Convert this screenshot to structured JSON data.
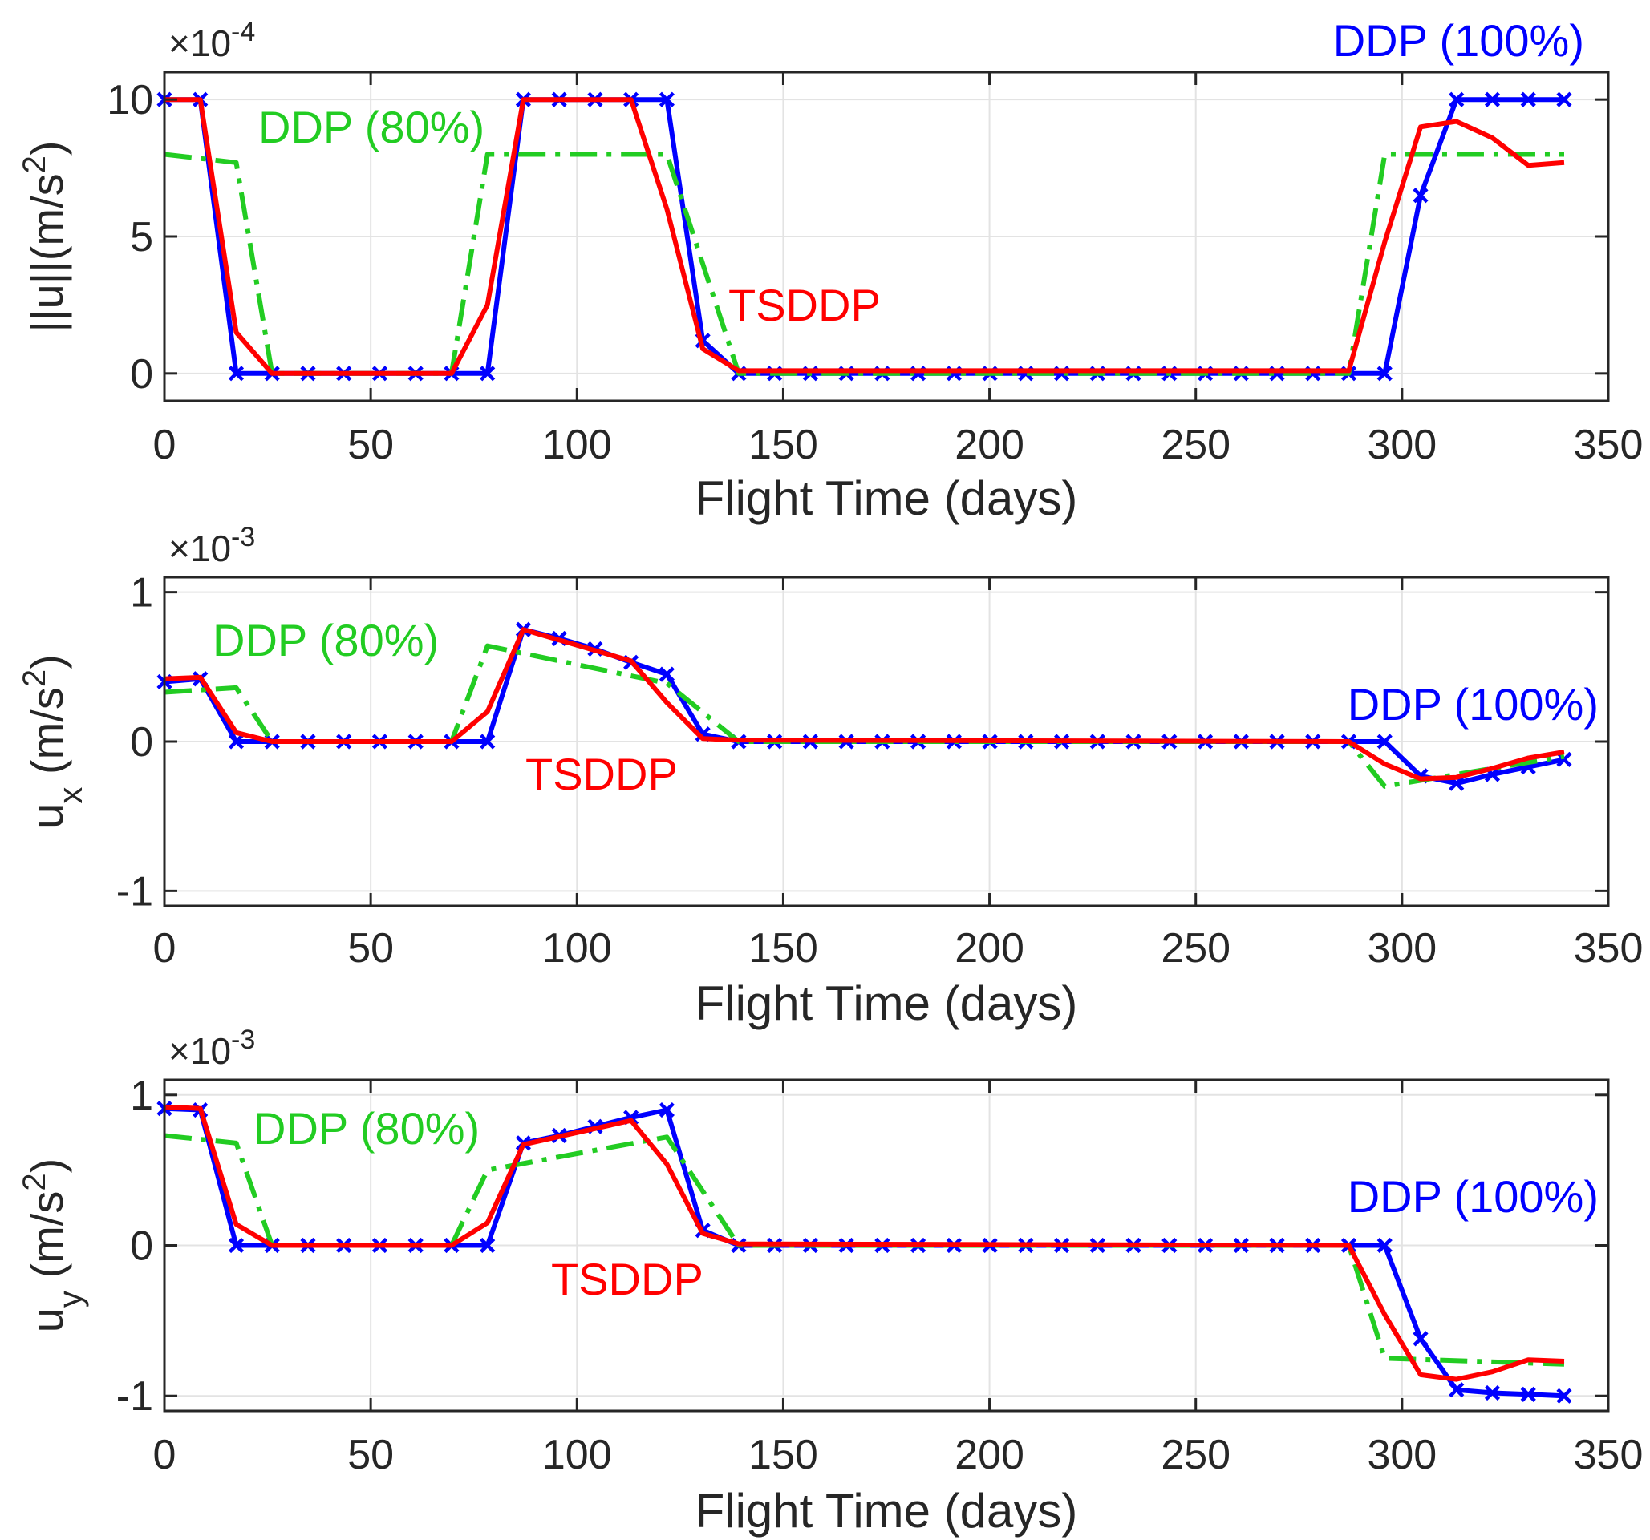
{
  "chart_data": [
    {
      "type": "line",
      "ylabel_parts": [
        "||u||(m/s",
        "2",
        ")"
      ],
      "multiplier_parts": [
        "×10",
        "-4"
      ],
      "xlabel": "Flight Time (days)",
      "xlim": [
        0,
        350
      ],
      "ylim": [
        -1,
        11
      ],
      "xticks": [
        0,
        50,
        100,
        150,
        200,
        250,
        300,
        350
      ],
      "yticks": [
        0,
        5,
        10
      ],
      "ytick_labels": [
        "0",
        "5",
        "10"
      ],
      "grid": true,
      "series": [
        {
          "name": "DDP (100%)",
          "color": "#0000ff",
          "style": "solid-x",
          "x": [
            0,
            8.7,
            17.4,
            26.1,
            34.8,
            43.5,
            52.2,
            60.9,
            69.6,
            78.3,
            87,
            95.7,
            104.4,
            113.1,
            121.8,
            130.5,
            139.2,
            147.9,
            156.6,
            165.3,
            174,
            182.7,
            191.4,
            200.1,
            208.8,
            217.5,
            226.2,
            234.9,
            243.6,
            252.3,
            261,
            269.7,
            278.4,
            287.1,
            295.8,
            304.5,
            313.2,
            321.9,
            330.6,
            339.3
          ],
          "y": [
            10,
            10,
            0,
            0,
            0,
            0,
            0,
            0,
            0,
            0,
            10,
            10,
            10,
            10,
            10,
            1.2,
            0,
            0,
            0,
            0,
            0,
            0,
            0,
            0,
            0,
            0,
            0,
            0,
            0,
            0,
            0,
            0,
            0,
            0,
            0,
            6.5,
            10,
            10,
            10,
            10
          ]
        },
        {
          "name": "DDP (80%)",
          "color": "#22cc22",
          "style": "dashdot",
          "x": [
            0,
            17.4,
            26.1,
            69.6,
            78.3,
            121.8,
            139.2,
            287.1,
            295.8,
            339.3
          ],
          "y": [
            8,
            7.7,
            0,
            0,
            8,
            8,
            0,
            0,
            8,
            8
          ]
        },
        {
          "name": "TSDDP",
          "color": "#ff0000",
          "style": "solid",
          "x": [
            0,
            8.7,
            17.4,
            26.1,
            69.6,
            78.3,
            87,
            113.1,
            121.8,
            130.5,
            139.2,
            287.1,
            295.8,
            304.5,
            313.2,
            321.9,
            330.6,
            339.3
          ],
          "y": [
            10,
            10,
            1.5,
            0,
            0,
            2.5,
            10,
            10,
            6,
            0.9,
            0.1,
            0.1,
            4.8,
            9,
            9.2,
            8.6,
            7.6,
            7.7
          ]
        }
      ],
      "annotations": [
        {
          "text": "DDP (100%)",
          "color": "#0000ff"
        },
        {
          "text": "DDP (80%)",
          "color": "#22cc22"
        },
        {
          "text": "TSDDP",
          "color": "#ff0000"
        }
      ]
    },
    {
      "type": "line",
      "ylabel_parts": [
        "u",
        "x",
        " (m/s",
        "2",
        ")"
      ],
      "multiplier_parts": [
        "×10",
        "-3"
      ],
      "xlabel": "Flight Time (days)",
      "xlim": [
        0,
        350
      ],
      "ylim": [
        -1.1,
        1.1
      ],
      "xticks": [
        0,
        50,
        100,
        150,
        200,
        250,
        300,
        350
      ],
      "yticks": [
        -1,
        0,
        1
      ],
      "ytick_labels": [
        "-1",
        "0",
        "1"
      ],
      "grid": true,
      "series": [
        {
          "name": "DDP (100%)",
          "color": "#0000ff",
          "style": "solid-x",
          "x": [
            0,
            8.7,
            17.4,
            26.1,
            34.8,
            43.5,
            52.2,
            60.9,
            69.6,
            78.3,
            87,
            95.7,
            104.4,
            113.1,
            121.8,
            130.5,
            139.2,
            147.9,
            156.6,
            165.3,
            174,
            182.7,
            191.4,
            200.1,
            208.8,
            217.5,
            226.2,
            234.9,
            243.6,
            252.3,
            261,
            269.7,
            278.4,
            287.1,
            295.8,
            304.5,
            313.2,
            321.9,
            330.6,
            339.3
          ],
          "y": [
            0.4,
            0.42,
            0,
            0,
            0,
            0,
            0,
            0,
            0,
            0,
            0.75,
            0.69,
            0.62,
            0.53,
            0.45,
            0.05,
            0,
            0,
            0,
            0,
            0,
            0,
            0,
            0,
            0,
            0,
            0,
            0,
            0,
            0,
            0,
            0,
            0,
            0,
            0,
            -0.23,
            -0.28,
            -0.22,
            -0.17,
            -0.12
          ]
        },
        {
          "name": "DDP (80%)",
          "color": "#22cc22",
          "style": "dashdot",
          "x": [
            0,
            17.4,
            26.1,
            69.6,
            78.3,
            121.8,
            139.2,
            287.1,
            295.8,
            339.3
          ],
          "y": [
            0.33,
            0.36,
            0,
            0,
            0.64,
            0.39,
            0,
            0,
            -0.3,
            -0.1
          ]
        },
        {
          "name": "TSDDP",
          "color": "#ff0000",
          "style": "solid",
          "x": [
            0,
            8.7,
            17.4,
            26.1,
            69.6,
            78.3,
            87,
            113.1,
            121.8,
            130.5,
            139.2,
            287.1,
            295.8,
            304.5,
            313.2,
            321.9,
            330.6,
            339.3
          ],
          "y": [
            0.42,
            0.43,
            0.06,
            0,
            0,
            0.2,
            0.75,
            0.54,
            0.26,
            0.02,
            0.01,
            0,
            -0.15,
            -0.25,
            -0.24,
            -0.18,
            -0.11,
            -0.07
          ]
        }
      ],
      "annotations": [
        {
          "text": "DDP (80%)",
          "color": "#22cc22"
        },
        {
          "text": "DDP (100%)",
          "color": "#0000ff"
        },
        {
          "text": "TSDDP",
          "color": "#ff0000"
        }
      ]
    },
    {
      "type": "line",
      "ylabel_parts": [
        "u",
        "y",
        " (m/s",
        "2",
        ")"
      ],
      "multiplier_parts": [
        "×10",
        "-3"
      ],
      "xlabel": "Flight Time (days)",
      "xlim": [
        0,
        350
      ],
      "ylim": [
        -1.1,
        1.1
      ],
      "xticks": [
        0,
        50,
        100,
        150,
        200,
        250,
        300,
        350
      ],
      "yticks": [
        -1,
        0,
        1
      ],
      "ytick_labels": [
        "-1",
        "0",
        "1"
      ],
      "grid": true,
      "series": [
        {
          "name": "DDP (100%)",
          "color": "#0000ff",
          "style": "solid-x",
          "x": [
            0,
            8.7,
            17.4,
            26.1,
            34.8,
            43.5,
            52.2,
            60.9,
            69.6,
            78.3,
            87,
            95.7,
            104.4,
            113.1,
            121.8,
            130.5,
            139.2,
            147.9,
            156.6,
            165.3,
            174,
            182.7,
            191.4,
            200.1,
            208.8,
            217.5,
            226.2,
            234.9,
            243.6,
            252.3,
            261,
            269.7,
            278.4,
            287.1,
            295.8,
            304.5,
            313.2,
            321.9,
            330.6,
            339.3
          ],
          "y": [
            0.91,
            0.9,
            0,
            0,
            0,
            0,
            0,
            0,
            0,
            0,
            0.68,
            0.73,
            0.79,
            0.85,
            0.9,
            0.1,
            0,
            0,
            0,
            0,
            0,
            0,
            0,
            0,
            0,
            0,
            0,
            0,
            0,
            0,
            0,
            0,
            0,
            0,
            0,
            -0.62,
            -0.96,
            -0.98,
            -0.99,
            -1
          ]
        },
        {
          "name": "DDP (80%)",
          "color": "#22cc22",
          "style": "dashdot",
          "x": [
            0,
            17.4,
            26.1,
            69.6,
            78.3,
            121.8,
            139.2,
            287.1,
            295.8,
            339.3
          ],
          "y": [
            0.73,
            0.68,
            0,
            0,
            0.5,
            0.72,
            0,
            0,
            -0.75,
            -0.79
          ]
        },
        {
          "name": "TSDDP",
          "color": "#ff0000",
          "style": "solid",
          "x": [
            0,
            8.7,
            17.4,
            26.1,
            69.6,
            78.3,
            87,
            113.1,
            121.8,
            130.5,
            139.2,
            287.1,
            295.8,
            304.5,
            313.2,
            321.9,
            330.6,
            339.3
          ],
          "y": [
            0.92,
            0.91,
            0.14,
            0,
            0,
            0.15,
            0.67,
            0.83,
            0.54,
            0.08,
            0.01,
            0,
            -0.46,
            -0.86,
            -0.89,
            -0.84,
            -0.76,
            -0.77
          ]
        }
      ],
      "annotations": [
        {
          "text": "DDP (80%)",
          "color": "#22cc22"
        },
        {
          "text": "DDP (100%)",
          "color": "#0000ff"
        },
        {
          "text": "TSDDP",
          "color": "#ff0000"
        }
      ]
    }
  ]
}
